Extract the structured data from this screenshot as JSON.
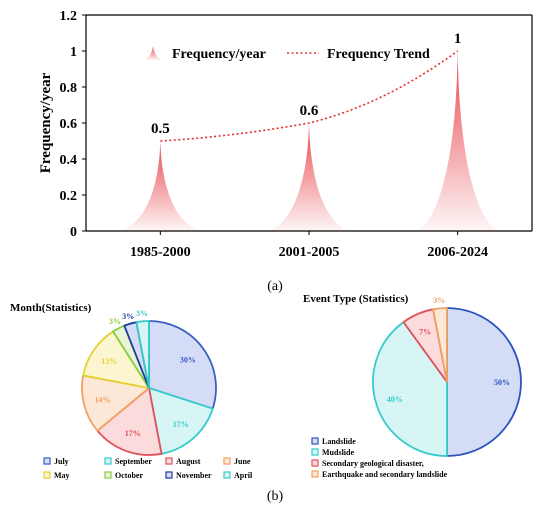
{
  "chart_data": [
    {
      "type": "area",
      "categories": [
        "1985-2000",
        "2001-2005",
        "2006-2024"
      ],
      "series": [
        {
          "name": "Frequency/year",
          "values": [
            0.5,
            0.6,
            1.0
          ]
        },
        {
          "name": "Frequency Trend",
          "values": [
            0.5,
            0.6,
            1.0
          ]
        }
      ],
      "data_labels": [
        "0.5",
        "0.6",
        "1"
      ],
      "ylabel": "Frequency/year",
      "yticks": [
        "0",
        "0.2",
        "0.4",
        "0.6",
        "0.8",
        "1",
        "1.2"
      ],
      "ylim": [
        0,
        1.2
      ],
      "grid": false,
      "legend_position": "top",
      "colors": {
        "peak": "#e8474f",
        "trend": "#e03030"
      },
      "panel_label": "(a)"
    },
    {
      "type": "pie",
      "title": "Month(Statistics)",
      "slices": [
        {
          "label": "July",
          "value": 30,
          "text": "30%",
          "color": "#3a5ec2",
          "fill": "#d4dcf6"
        },
        {
          "label": "September",
          "value": 17,
          "text": "17%",
          "color": "#36cccc",
          "fill": "#d6f5f4"
        },
        {
          "label": "August",
          "value": 17,
          "text": "17%",
          "color": "#e0505a",
          "fill": "#fbdbdc"
        },
        {
          "label": "June",
          "value": 14,
          "text": "14%",
          "color": "#f0a060",
          "fill": "#fde8d8"
        },
        {
          "label": "May",
          "value": 13,
          "text": "13%",
          "color": "#e6d030",
          "fill": "#fbf6d0"
        },
        {
          "label": "October",
          "value": 3,
          "text": "3%",
          "color": "#88cc44",
          "fill": "#e8f6d6"
        },
        {
          "label": "November",
          "value": 3,
          "text": "3%",
          "color": "#203a9c",
          "fill": "#d4dcf6"
        },
        {
          "label": "April",
          "value": 3,
          "text": "3%",
          "color": "#36c8c8",
          "fill": "#d6f5f4"
        }
      ],
      "legend_position": "bottom"
    },
    {
      "type": "pie",
      "title": "Event Type (Statistics)",
      "slices": [
        {
          "label": "Landslide",
          "value": 50,
          "text": "50%",
          "color": "#2a52c0",
          "fill": "#d4dcf6"
        },
        {
          "label": "Mudslide",
          "value": 40,
          "text": "40%",
          "color": "#36cccc",
          "fill": "#d6f5f4"
        },
        {
          "label": "Secondary geological disaster,",
          "value": 7,
          "text": "7%",
          "color": "#e0505a",
          "fill": "#fbdbdc"
        },
        {
          "label": "Earthquake and secondary landslide",
          "value": 3,
          "text": "3%",
          "color": "#f0a060",
          "fill": "#fde8d8"
        }
      ],
      "legend_position": "bottom-left",
      "panel_label": "(b)"
    }
  ]
}
